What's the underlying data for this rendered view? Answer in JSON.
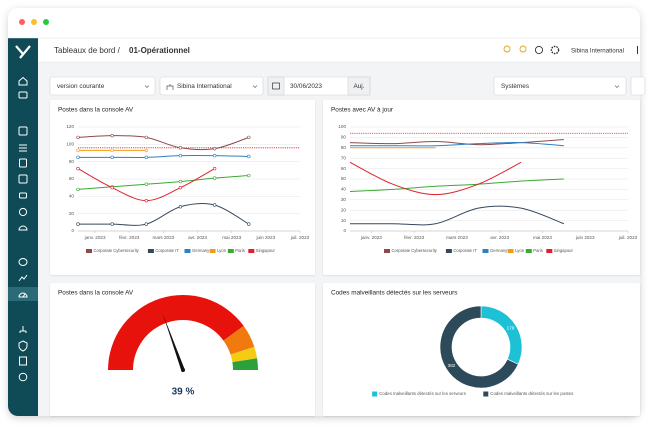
{
  "header": {
    "breadcrumb": "Tableaux de bord /",
    "page": "01-Opérationnel",
    "organization": "Sibina International"
  },
  "filters": {
    "version": "version courante",
    "entity": "Sibina International",
    "date": "30/06/2023",
    "today_button": "Auj.",
    "scope": "Systèmes"
  },
  "panels": [
    {
      "title": "Postes dans la console AV",
      "chart": {
        "type": "line",
        "markers": true,
        "x": [
          -0.5,
          0.5,
          1.5,
          2.5,
          3.5,
          4.5
        ],
        "xlim": [
          -0.5,
          6
        ],
        "xticks": [
          {
            "value": 0,
            "label": "janv. 2023"
          },
          {
            "value": 1,
            "label": "févr. 2023"
          },
          {
            "value": 2,
            "label": "mars 2023"
          },
          {
            "value": 3,
            "label": "avr. 2023"
          },
          {
            "value": 4,
            "label": "mai 2023"
          },
          {
            "value": 5,
            "label": "juin 2023"
          },
          {
            "value": 6,
            "label": "juil. 2023"
          }
        ],
        "ylim": [
          0,
          120
        ],
        "yticks": [
          0,
          20,
          40,
          60,
          80,
          100,
          120
        ],
        "reference_line": {
          "value": 96,
          "color": "#e0202e"
        },
        "series": [
          {
            "name": "Corporate Cybersecurity",
            "color": "#8c4b4b",
            "values": [
              108,
              110,
              108,
              96,
              95,
              108
            ]
          },
          {
            "name": "Corporate IT",
            "color": "#34495e",
            "values": [
              8,
              8,
              8,
              28,
              30,
              8
            ]
          },
          {
            "name": "Germany",
            "color": "#2f7fc1",
            "values": [
              85,
              85,
              85,
              87,
              87,
              86
            ]
          },
          {
            "name": "Lyon",
            "color": "#f39c12",
            "values": [
              93,
              93,
              93,
              null,
              null,
              null
            ]
          },
          {
            "name": "Paris",
            "color": "#3aaa35",
            "values": [
              48,
              51,
              54,
              57,
              61,
              64
            ]
          },
          {
            "name": "Singapour",
            "color": "#e0202e",
            "values": [
              72,
              50,
              35,
              50,
              72,
              null
            ]
          }
        ]
      }
    },
    {
      "title": "Postes avec AV à jour",
      "chart": {
        "type": "line",
        "markers": false,
        "x": [
          -0.5,
          0.5,
          1.5,
          2.5,
          3.5,
          4.5
        ],
        "xlim": [
          -0.5,
          6
        ],
        "xticks": [
          {
            "value": 0,
            "label": "janv. 2023"
          },
          {
            "value": 1,
            "label": "févr. 2023"
          },
          {
            "value": 2,
            "label": "mars 2023"
          },
          {
            "value": 3,
            "label": "avr. 2023"
          },
          {
            "value": 4,
            "label": "mai 2023"
          },
          {
            "value": 5,
            "label": "juin 2023"
          },
          {
            "value": 6,
            "label": "juil. 2023"
          }
        ],
        "ylim": [
          0,
          100
        ],
        "yticks": [
          0,
          10,
          20,
          30,
          40,
          50,
          60,
          70,
          80,
          90,
          100
        ],
        "reference_line": {
          "value": 94,
          "color": "#e0202e"
        },
        "series": [
          {
            "name": "Corporate Cybersecurity",
            "color": "#8c4b4b",
            "values": [
              85,
              84,
              86,
              83,
              85,
              88
            ]
          },
          {
            "name": "Corporate IT",
            "color": "#34495e",
            "values": [
              7,
              7,
              7,
              22,
              22,
              7
            ]
          },
          {
            "name": "Germany",
            "color": "#2f7fc1",
            "values": [
              82,
              82,
              82,
              84,
              85,
              82
            ]
          },
          {
            "name": "Lyon",
            "color": "#f39c12",
            "values": [
              80,
              80,
              80,
              null,
              null,
              null
            ]
          },
          {
            "name": "Paris",
            "color": "#3aaa35",
            "values": [
              38,
              40,
              43,
              45,
              48,
              50
            ]
          },
          {
            "name": "Singapour",
            "color": "#e0202e",
            "values": [
              66,
              45,
              35,
              45,
              66,
              null
            ]
          }
        ]
      }
    },
    {
      "title": "Postes dans la console AV",
      "chart": {
        "type": "gauge",
        "range": [
          0,
          100
        ],
        "value": 39,
        "value_label": "39 %",
        "bands": [
          {
            "to": 80,
            "color": "#e8120c"
          },
          {
            "to": 90,
            "color": "#f07a10"
          },
          {
            "to": 95,
            "color": "#f5cc12"
          },
          {
            "to": 100,
            "color": "#2aa13a"
          }
        ]
      }
    },
    {
      "title": "Codes malveillants détectés sur les serveurs",
      "chart": {
        "type": "donut",
        "categories": [
          "Codes malveillants détectés sur les serveurs",
          "Codes malveillants détectés sur les postes"
        ],
        "values": [
          179,
          382
        ],
        "colors": [
          "#1ec0d6",
          "#2d4a5a"
        ]
      }
    }
  ]
}
